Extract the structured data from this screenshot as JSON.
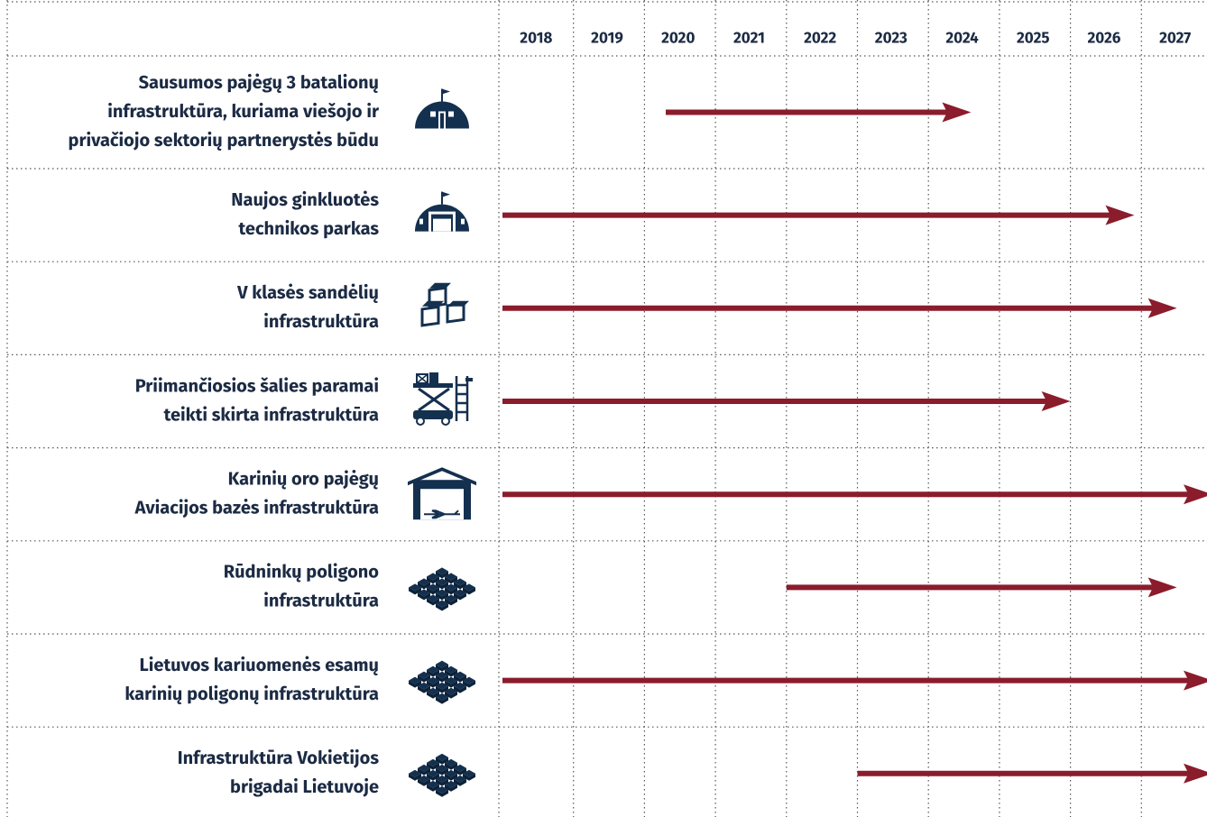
{
  "chart_data": {
    "type": "timeline",
    "columns": [
      "2018",
      "2019",
      "2020",
      "2021",
      "2022",
      "2023",
      "2024",
      "2025",
      "2026",
      "2027"
    ],
    "xlim": [
      2018,
      2028
    ],
    "color": "#8b1c2c",
    "tasks": [
      {
        "label": [
          "Sausumos pajėgų 3 batalionų",
          "infrastruktūra, kuriama viešojo ir",
          "privačiojo sektorių partnerystės būdu"
        ],
        "start": 2020.3,
        "end": 2024.6
      },
      {
        "label": [
          "Naujos ginkluotės",
          "technikos parkas"
        ],
        "start": 2018,
        "end": 2026.9
      },
      {
        "label": [
          "V klasės sandėlių",
          "infrastruktūra"
        ],
        "start": 2018,
        "end": 2027.5
      },
      {
        "label": [
          "Priimančiosios šalies paramai",
          "teikti skirta infrastruktūra"
        ],
        "start": 2018,
        "end": 2026
      },
      {
        "label": [
          "Karinių oro pajėgų",
          "Aviacijos bazės infrastruktūra"
        ],
        "start": 2018,
        "end": 2028
      },
      {
        "label": [
          "Rūdninkų poligono",
          "infrastruktūra"
        ],
        "start": 2022,
        "end": 2027.5
      },
      {
        "label": [
          "Lietuvos kariuomenės esamų",
          "karinių poligonų infrastruktūra"
        ],
        "start": 2018,
        "end": 2028
      },
      {
        "label": [
          "Infrastruktūra Vokietijos",
          "brigadai Lietuvoje"
        ],
        "start": 2023,
        "end": 2028
      }
    ]
  }
}
